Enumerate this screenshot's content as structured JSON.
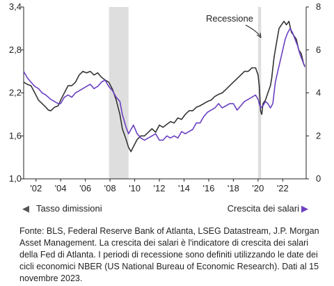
{
  "chart_data": {
    "type": "line",
    "title": "",
    "grid": false,
    "recession_shading": [
      {
        "start": 2007.92,
        "end": 2009.5
      },
      {
        "start": 2020.0,
        "end": 2020.25
      }
    ],
    "annotations": [
      {
        "text": "Recessione",
        "x": 2020.1,
        "y_right": 7.4
      }
    ],
    "x_axis": {
      "range": [
        2001.0,
        2023.9
      ],
      "ticks": [
        2002,
        2004,
        2006,
        2008,
        2010,
        2012,
        2014,
        2016,
        2018,
        2020,
        2022
      ],
      "tick_labels": [
        "'02",
        "'04",
        "'06",
        "'08",
        "'10",
        "'12",
        "'14",
        "'16",
        "'18",
        "'20",
        "'22"
      ]
    },
    "y_axis_left": {
      "range": [
        1.0,
        3.4
      ],
      "ticks": [
        1.0,
        1.6,
        2.2,
        2.8,
        3.4
      ],
      "tick_labels": [
        "1,0",
        "1,6",
        "2,2",
        "2,8",
        "3,4"
      ]
    },
    "y_axis_right": {
      "range": [
        0,
        8
      ],
      "ticks": [
        0,
        2,
        4,
        6,
        8
      ],
      "tick_labels": [
        "0",
        "2",
        "4",
        "6",
        "8"
      ]
    },
    "series": [
      {
        "name": "Tasso dimissioni",
        "axis": "left",
        "color": "#333333",
        "points": [
          [
            2001.0,
            2.35
          ],
          [
            2001.3,
            2.32
          ],
          [
            2001.6,
            2.3
          ],
          [
            2001.9,
            2.2
          ],
          [
            2002.2,
            2.1
          ],
          [
            2002.5,
            2.05
          ],
          [
            2002.8,
            2.0
          ],
          [
            2003.0,
            1.96
          ],
          [
            2003.2,
            1.95
          ],
          [
            2003.5,
            2.0
          ],
          [
            2003.8,
            2.02
          ],
          [
            2004.0,
            2.1
          ],
          [
            2004.3,
            2.2
          ],
          [
            2004.6,
            2.3
          ],
          [
            2004.9,
            2.3
          ],
          [
            2005.2,
            2.35
          ],
          [
            2005.5,
            2.45
          ],
          [
            2005.8,
            2.5
          ],
          [
            2006.1,
            2.48
          ],
          [
            2006.4,
            2.5
          ],
          [
            2006.7,
            2.45
          ],
          [
            2007.0,
            2.48
          ],
          [
            2007.3,
            2.42
          ],
          [
            2007.6,
            2.38
          ],
          [
            2007.9,
            2.35
          ],
          [
            2008.2,
            2.25
          ],
          [
            2008.5,
            2.1
          ],
          [
            2008.8,
            1.9
          ],
          [
            2009.0,
            1.7
          ],
          [
            2009.3,
            1.55
          ],
          [
            2009.5,
            1.44
          ],
          [
            2009.7,
            1.38
          ],
          [
            2009.9,
            1.45
          ],
          [
            2010.2,
            1.55
          ],
          [
            2010.5,
            1.6
          ],
          [
            2010.8,
            1.6
          ],
          [
            2011.1,
            1.65
          ],
          [
            2011.4,
            1.7
          ],
          [
            2011.7,
            1.65
          ],
          [
            2012.0,
            1.75
          ],
          [
            2012.3,
            1.72
          ],
          [
            2012.6,
            1.76
          ],
          [
            2012.9,
            1.8
          ],
          [
            2013.2,
            1.78
          ],
          [
            2013.5,
            1.85
          ],
          [
            2013.8,
            1.83
          ],
          [
            2014.1,
            1.9
          ],
          [
            2014.4,
            1.95
          ],
          [
            2014.7,
            1.95
          ],
          [
            2015.0,
            2.0
          ],
          [
            2015.3,
            2.02
          ],
          [
            2015.6,
            2.05
          ],
          [
            2015.9,
            2.08
          ],
          [
            2016.2,
            2.1
          ],
          [
            2016.5,
            2.15
          ],
          [
            2016.8,
            2.18
          ],
          [
            2017.1,
            2.2
          ],
          [
            2017.4,
            2.25
          ],
          [
            2017.7,
            2.3
          ],
          [
            2018.0,
            2.35
          ],
          [
            2018.3,
            2.4
          ],
          [
            2018.6,
            2.45
          ],
          [
            2018.9,
            2.5
          ],
          [
            2019.2,
            2.5
          ],
          [
            2019.5,
            2.55
          ],
          [
            2019.8,
            2.55
          ],
          [
            2020.0,
            2.45
          ],
          [
            2020.1,
            2.3
          ],
          [
            2020.2,
            1.95
          ],
          [
            2020.3,
            1.9
          ],
          [
            2020.4,
            2.05
          ],
          [
            2020.6,
            2.1
          ],
          [
            2020.8,
            2.2
          ],
          [
            2021.0,
            2.3
          ],
          [
            2021.1,
            2.4
          ],
          [
            2021.3,
            2.7
          ],
          [
            2021.5,
            2.9
          ],
          [
            2021.7,
            3.1
          ],
          [
            2021.9,
            3.15
          ],
          [
            2022.1,
            3.2
          ],
          [
            2022.3,
            3.15
          ],
          [
            2022.5,
            3.2
          ],
          [
            2022.7,
            3.05
          ],
          [
            2022.9,
            3.0
          ],
          [
            2023.1,
            2.95
          ],
          [
            2023.3,
            2.8
          ],
          [
            2023.5,
            2.75
          ],
          [
            2023.7,
            2.6
          ],
          [
            2023.8,
            2.58
          ]
        ]
      },
      {
        "name": "Crescita dei salari",
        "axis": "right",
        "color": "#6a3fc1",
        "points": [
          [
            2001.0,
            5.0
          ],
          [
            2001.3,
            4.7
          ],
          [
            2001.6,
            4.5
          ],
          [
            2001.9,
            4.3
          ],
          [
            2002.2,
            4.2
          ],
          [
            2002.5,
            4.0
          ],
          [
            2002.8,
            3.9
          ],
          [
            2003.0,
            3.8
          ],
          [
            2003.2,
            3.7
          ],
          [
            2003.5,
            3.6
          ],
          [
            2003.8,
            3.5
          ],
          [
            2004.0,
            3.5
          ],
          [
            2004.3,
            3.8
          ],
          [
            2004.6,
            3.9
          ],
          [
            2004.9,
            3.8
          ],
          [
            2005.2,
            4.0
          ],
          [
            2005.5,
            4.1
          ],
          [
            2005.8,
            4.2
          ],
          [
            2006.1,
            4.3
          ],
          [
            2006.4,
            4.4
          ],
          [
            2006.7,
            4.2
          ],
          [
            2007.0,
            4.3
          ],
          [
            2007.3,
            4.5
          ],
          [
            2007.6,
            4.6
          ],
          [
            2007.9,
            4.3
          ],
          [
            2008.2,
            4.1
          ],
          [
            2008.5,
            3.8
          ],
          [
            2008.8,
            3.6
          ],
          [
            2009.0,
            3.0
          ],
          [
            2009.3,
            2.4
          ],
          [
            2009.5,
            2.1
          ],
          [
            2009.7,
            2.3
          ],
          [
            2009.9,
            2.5
          ],
          [
            2010.2,
            2.1
          ],
          [
            2010.5,
            1.9
          ],
          [
            2010.8,
            1.8
          ],
          [
            2011.1,
            1.9
          ],
          [
            2011.4,
            2.0
          ],
          [
            2011.7,
            2.1
          ],
          [
            2012.0,
            1.8
          ],
          [
            2012.3,
            1.8
          ],
          [
            2012.6,
            2.0
          ],
          [
            2012.9,
            1.9
          ],
          [
            2013.2,
            2.0
          ],
          [
            2013.5,
            1.9
          ],
          [
            2013.8,
            2.2
          ],
          [
            2014.1,
            2.1
          ],
          [
            2014.4,
            2.2
          ],
          [
            2014.7,
            2.3
          ],
          [
            2015.0,
            2.6
          ],
          [
            2015.3,
            2.6
          ],
          [
            2015.6,
            2.9
          ],
          [
            2015.9,
            3.1
          ],
          [
            2016.2,
            3.2
          ],
          [
            2016.5,
            3.3
          ],
          [
            2016.8,
            3.5
          ],
          [
            2017.1,
            3.3
          ],
          [
            2017.4,
            3.4
          ],
          [
            2017.7,
            3.5
          ],
          [
            2018.0,
            3.5
          ],
          [
            2018.3,
            3.2
          ],
          [
            2018.6,
            3.4
          ],
          [
            2018.9,
            3.6
          ],
          [
            2019.2,
            3.7
          ],
          [
            2019.5,
            3.8
          ],
          [
            2019.8,
            3.9
          ],
          [
            2020.0,
            3.7
          ],
          [
            2020.1,
            3.5
          ],
          [
            2020.2,
            3.3
          ],
          [
            2020.4,
            3.4
          ],
          [
            2020.6,
            3.6
          ],
          [
            2020.8,
            3.5
          ],
          [
            2021.0,
            3.3
          ],
          [
            2021.2,
            3.5
          ],
          [
            2021.4,
            4.5
          ],
          [
            2021.6,
            5.0
          ],
          [
            2021.8,
            5.5
          ],
          [
            2022.0,
            6.0
          ],
          [
            2022.2,
            6.5
          ],
          [
            2022.4,
            6.8
          ],
          [
            2022.6,
            7.0
          ],
          [
            2022.8,
            6.8
          ],
          [
            2023.0,
            6.5
          ],
          [
            2023.2,
            6.2
          ],
          [
            2023.4,
            5.8
          ],
          [
            2023.6,
            5.5
          ],
          [
            2023.8,
            5.2
          ]
        ]
      }
    ],
    "legend": {
      "left": {
        "text": "Tasso dimissioni",
        "marker": "◀"
      },
      "right": {
        "text": "Crescita dei salari",
        "marker": "▶"
      }
    }
  },
  "footnote": "Fonte: BLS, Federal Reserve Bank of Atlanta, LSEG Datastream, J.P. Morgan Asset Management. La crescita dei salari è l'indicatore di crescita dei salari della Fed di Atlanta. I periodi di recessione sono definiti utilizzando le date dei cicli economici NBER (US National Bureau of Economic Research). Dati al 15 novembre 2023."
}
